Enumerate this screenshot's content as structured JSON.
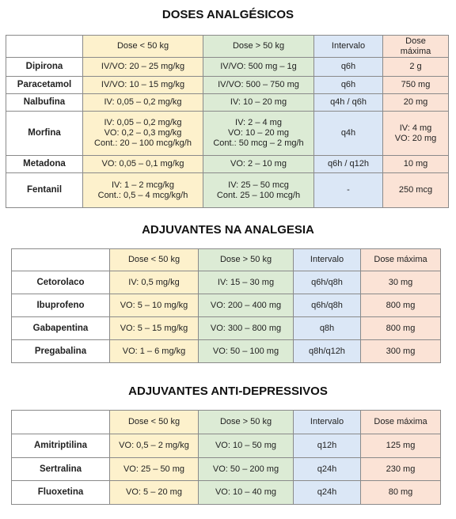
{
  "sections": [
    {
      "title": "DOSES ANALGÉSICOS",
      "header": [
        "Dose < 50 kg",
        "Dose > 50 kg",
        "Intervalo",
        [
          "Dose",
          "máxima"
        ]
      ],
      "rows": [
        [
          "Dipirona",
          "IV/VO: 20 – 25 mg/kg",
          "IV/VO: 500 mg – 1g",
          "q6h",
          "2 g"
        ],
        [
          "Paracetamol",
          "IV/VO: 10 – 15 mg/kg",
          "IV/VO: 500 – 750 mg",
          "q6h",
          "750 mg"
        ],
        [
          "Nalbufina",
          "IV: 0,05 – 0,2 mg/kg",
          "IV: 10 – 20 mg",
          "q4h / q6h",
          "20 mg"
        ],
        [
          "Morfina",
          [
            "IV: 0,05 – 0,2 mg/kg",
            "VO: 0,2 – 0,3 mg/kg",
            "Cont.: 20 – 100 mcg/kg/h"
          ],
          [
            "IV: 2 – 4 mg",
            "VO: 10 – 20 mg",
            "Cont.: 50 mcg – 2 mg/h"
          ],
          "q4h",
          [
            "IV: 4 mg",
            "VO: 20 mg"
          ]
        ],
        [
          "Metadona",
          "VO: 0,05 – 0,1 mg/kg",
          "VO: 2 – 10 mg",
          "q6h / q12h",
          "10 mg"
        ],
        [
          "Fentanil",
          [
            "IV: 1 – 2 mcg/kg",
            "Cont.: 0,5 – 4 mcg/kg/h"
          ],
          [
            "IV: 25 – 50 mcg",
            "Cont. 25 – 100 mcg/h"
          ],
          "-",
          "250 mcg"
        ]
      ]
    },
    {
      "title": "ADJUVANTES NA ANALGESIA",
      "header": [
        "Dose < 50 kg",
        "Dose > 50 kg",
        "Intervalo",
        "Dose máxima"
      ],
      "rows": [
        [
          "Cetorolaco",
          "IV: 0,5 mg/kg",
          "IV: 15 – 30 mg",
          "q6h/q8h",
          "30 mg"
        ],
        [
          "Ibuprofeno",
          "VO: 5 – 10 mg/kg",
          "VO: 200 – 400 mg",
          "q6h/q8h",
          "800 mg"
        ],
        [
          "Gabapentina",
          "VO: 5 – 15 mg/kg",
          "VO: 300 – 800 mg",
          "q8h",
          "800 mg"
        ],
        [
          "Pregabalina",
          "VO: 1 – 6 mg/kg",
          "VO: 50 – 100 mg",
          "q8h/q12h",
          "300 mg"
        ]
      ]
    },
    {
      "title": "ADJUVANTES ANTI-DEPRESSIVOS",
      "header": [
        "Dose < 50 kg",
        "Dose > 50 kg",
        "Intervalo",
        "Dose máxima"
      ],
      "rows": [
        [
          "Amitriptilina",
          "VO: 0,5 – 2 mg/kg",
          "VO: 10 – 50 mg",
          "q12h",
          "125 mg"
        ],
        [
          "Sertralina",
          "VO: 25 – 50 mg",
          "VO: 50 – 200 mg",
          "q24h",
          "230 mg"
        ],
        [
          "Fluoxetina",
          "VO: 5 – 20 mg",
          "VO: 10 – 40 mg",
          "q24h",
          "80 mg"
        ]
      ]
    }
  ]
}
